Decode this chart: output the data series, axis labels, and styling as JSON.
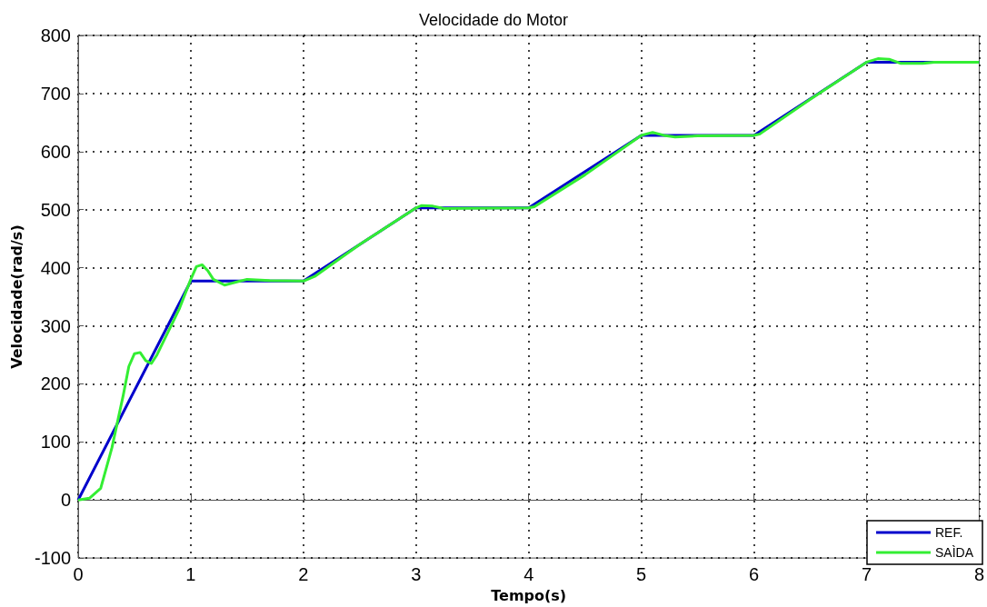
{
  "chart_data": {
    "type": "line",
    "title": "Velocidade do Motor",
    "xlabel": "Tempo(s)",
    "ylabel": "Velocidade(rad/s)",
    "xlim": [
      0,
      8
    ],
    "xticks": [
      0,
      1,
      2,
      3,
      4,
      5,
      6,
      7,
      8
    ],
    "ylim": [
      -100,
      800
    ],
    "yticks": [
      -100,
      0,
      100,
      200,
      300,
      400,
      500,
      600,
      700,
      800
    ],
    "grid": true,
    "legend": "bottom right",
    "marker": "none",
    "line_style": "solid",
    "series": [
      {
        "name": "REF.",
        "color": "#0000cc",
        "x": [
          0,
          1,
          2,
          3,
          4,
          5,
          6,
          7,
          8
        ],
        "values": [
          0,
          377,
          377,
          503,
          503,
          628,
          628,
          754,
          754
        ]
      },
      {
        "name": "SAÌDA",
        "color": "#33ee33",
        "x": [
          0,
          0.1,
          0.2,
          0.3,
          0.4,
          0.45,
          0.5,
          0.55,
          0.6,
          0.65,
          0.7,
          0.8,
          0.9,
          1.0,
          1.05,
          1.1,
          1.15,
          1.2,
          1.3,
          1.4,
          1.5,
          1.7,
          2.0,
          2.1,
          2.5,
          3.0,
          3.05,
          3.15,
          3.25,
          4.0,
          4.05,
          4.5,
          5.0,
          5.1,
          5.2,
          5.3,
          5.5,
          6.0,
          6.05,
          6.5,
          7.0,
          7.1,
          7.2,
          7.3,
          7.5,
          7.6,
          8
        ],
        "values": [
          0,
          3,
          20,
          90,
          180,
          230,
          252,
          254,
          240,
          235,
          250,
          290,
          330,
          380,
          402,
          405,
          395,
          380,
          370,
          375,
          380,
          378,
          377,
          385,
          440,
          503,
          507,
          506,
          502,
          503,
          505,
          560,
          628,
          633,
          628,
          625,
          627,
          628,
          630,
          690,
          754,
          760,
          759,
          752,
          752,
          754,
          754
        ]
      }
    ]
  }
}
